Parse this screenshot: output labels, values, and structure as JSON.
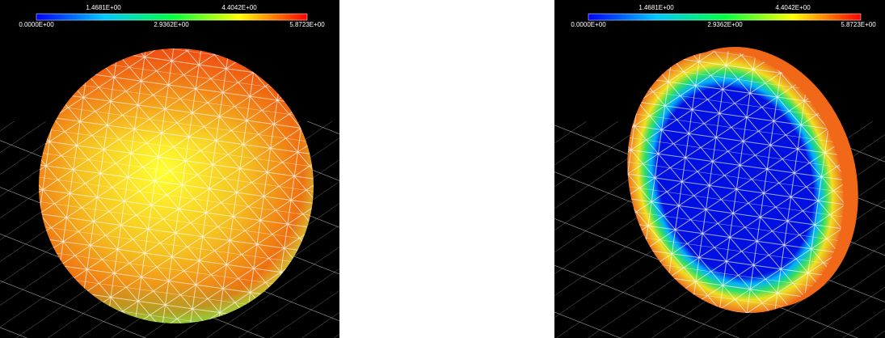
{
  "panels": [
    {
      "colorbar": {
        "top_labels": [
          "1.4681E+00",
          "4.4042E+00"
        ],
        "bottom_labels": [
          "0.0000E+00",
          "2.9362E+00",
          "5.8723E+00"
        ]
      }
    },
    {
      "colorbar": {
        "top_labels": [
          "1.4681E+00",
          "4.4042E+00"
        ],
        "bottom_labels": [
          "0.0000E+00",
          "2.9362E+00",
          "5.8723E+00"
        ]
      }
    }
  ]
}
